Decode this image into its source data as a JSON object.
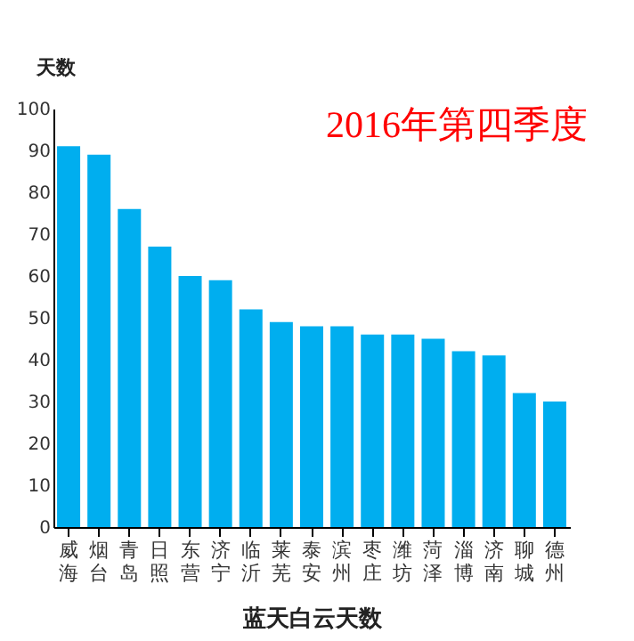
{
  "chart_data": {
    "type": "bar",
    "title": "2016年第四季度",
    "ylabel": "天数",
    "xlabel": "蓝天白云天数",
    "categories": [
      "威海",
      "烟台",
      "青岛",
      "日照",
      "东营",
      "济宁",
      "临沂",
      "莱芜",
      "泰安",
      "滨州",
      "枣庄",
      "潍坊",
      "菏泽",
      "淄博",
      "济南",
      "聊城",
      "德州"
    ],
    "values": [
      91,
      89,
      76,
      67,
      60,
      59,
      52,
      49,
      48,
      48,
      46,
      46,
      45,
      42,
      41,
      32,
      30
    ],
    "color": "#00aeef",
    "ylim": [
      0,
      100
    ],
    "yticks": [
      0,
      10,
      20,
      30,
      40,
      50,
      60,
      70,
      80,
      90,
      100
    ],
    "grid": false
  }
}
